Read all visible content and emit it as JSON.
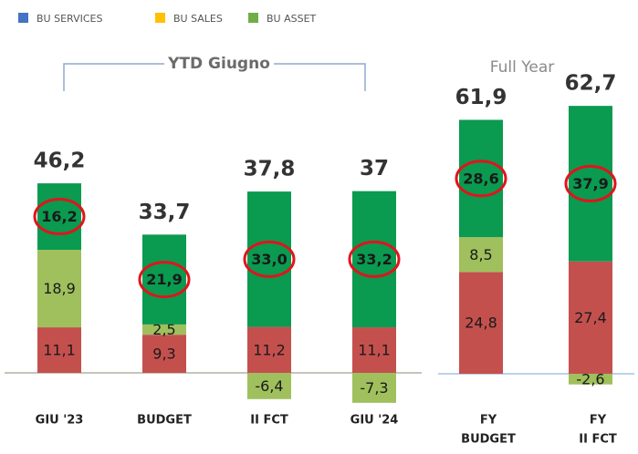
{
  "chart_data": {
    "type": "stacked_bar",
    "legend": [
      {
        "name": "BU SERVICES",
        "color": "#4472c4"
      },
      {
        "name": "BU SALES",
        "color": "#ffc000"
      },
      {
        "name": "BU ASSET",
        "color": "#70ad47"
      }
    ],
    "annotations": [
      "YTD Giugno",
      "Full Year"
    ],
    "categories": [
      "GIU '23",
      "BUDGET",
      "II FCT",
      "GIU '24",
      [
        "FY",
        "BUDGET"
      ],
      [
        "FY",
        "II FCT"
      ]
    ],
    "series": [
      {
        "color": "#c4504e",
        "values": [
          11.1,
          9.3,
          11.2,
          11.1,
          24.8,
          27.4
        ],
        "value_labels": [
          "11,1",
          "9,3",
          "11,2",
          "11,1",
          "24,8",
          "27,4"
        ]
      },
      {
        "color": "#9fc05c",
        "values": [
          18.9,
          2.5,
          -6.4,
          -7.3,
          8.5,
          -2.6
        ],
        "value_labels": [
          "18,9",
          "2,5",
          "-6,4",
          "-7,3",
          "8,5",
          "-2,6"
        ]
      },
      {
        "color": "#0a9a50",
        "values": [
          16.2,
          21.9,
          33.0,
          33.2,
          28.6,
          37.9
        ],
        "value_labels": [
          "16,2",
          "21,9",
          "33,0",
          "33,2",
          "28,6",
          "37,9"
        ],
        "highlighted": true
      }
    ],
    "totals": [
      46.2,
      33.7,
      37.8,
      37,
      61.9,
      62.7
    ],
    "total_labels": [
      "46,2",
      "33,7",
      "37,8",
      "37",
      "61,9",
      "62,7"
    ]
  }
}
